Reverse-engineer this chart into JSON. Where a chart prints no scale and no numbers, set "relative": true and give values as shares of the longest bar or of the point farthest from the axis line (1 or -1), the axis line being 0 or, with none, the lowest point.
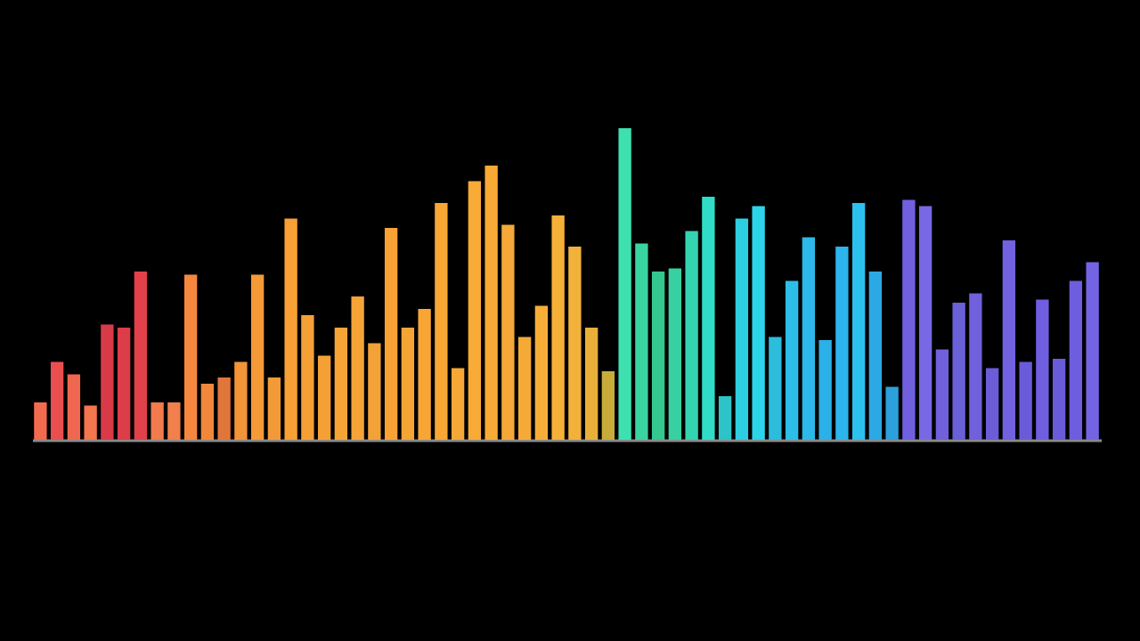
{
  "chart_data": {
    "type": "bar",
    "relative": true,
    "categories": [
      null,
      null,
      null,
      null,
      null,
      null,
      null,
      null,
      null,
      null,
      null,
      null,
      null,
      null,
      null,
      null,
      null,
      null,
      null,
      null,
      null,
      null,
      null,
      null,
      null,
      null,
      null,
      null,
      null,
      null,
      null,
      null,
      null,
      null,
      null,
      null,
      null,
      null,
      null,
      null,
      null,
      null,
      null,
      null,
      null,
      null,
      null,
      null,
      null,
      null,
      null,
      null,
      null,
      null,
      null,
      null,
      null,
      null,
      null,
      null,
      null,
      null,
      null,
      null
    ],
    "values": [
      0.12,
      0.25,
      0.21,
      0.11,
      0.37,
      0.36,
      0.54,
      0.12,
      0.12,
      0.53,
      0.18,
      0.2,
      0.25,
      0.53,
      0.2,
      0.71,
      0.4,
      0.27,
      0.36,
      0.46,
      0.31,
      0.68,
      0.36,
      0.42,
      0.76,
      0.23,
      0.83,
      0.88,
      0.69,
      0.33,
      0.43,
      0.72,
      0.62,
      0.36,
      0.22,
      1.0,
      0.63,
      0.54,
      0.55,
      0.67,
      0.78,
      0.14,
      0.71,
      0.75,
      0.33,
      0.51,
      0.65,
      0.32,
      0.62,
      0.76,
      0.54,
      0.17,
      0.77,
      0.75,
      0.29,
      0.44,
      0.47,
      0.23,
      0.64,
      0.25,
      0.45,
      0.26,
      0.51,
      0.57
    ],
    "colors": [
      "#f26b4f",
      "#ea4f4f",
      "#f0674f",
      "#f3764f",
      "#d93a48",
      "#dc3d48",
      "#e2404a",
      "#f27a4c",
      "#f2804c",
      "#f5873e",
      "#f0873a",
      "#e0763a",
      "#f29438",
      "#f59a36",
      "#f29a38",
      "#f7a035",
      "#f5a035",
      "#f5a035",
      "#f7a436",
      "#f7a436",
      "#f2a236",
      "#f8a235",
      "#f5a535",
      "#f7a636",
      "#f8a735",
      "#f6a836",
      "#f8aa36",
      "#f8aa36",
      "#f5a838",
      "#f5aa38",
      "#f7ae38",
      "#f6b038",
      "#f2b23a",
      "#e8b03a",
      "#c8ac3a",
      "#3ee0b0",
      "#3ad4a0",
      "#34c890",
      "#38d0a0",
      "#34d4b0",
      "#30dcc8",
      "#2cc4c8",
      "#2ccfe0",
      "#2cd4ea",
      "#2cbcdc",
      "#2cbee6",
      "#2cb8e8",
      "#2cb0e8",
      "#2cb4ec",
      "#2cc0ee",
      "#2ca8e4",
      "#2ca0dc",
      "#7060e0",
      "#7868e4",
      "#7060dc",
      "#6a60d8",
      "#7060dc",
      "#6c5cd8",
      "#7262e0",
      "#6a5cd8",
      "#705ee0",
      "#6a5cd8",
      "#6c5edc",
      "#7464e4"
    ]
  }
}
